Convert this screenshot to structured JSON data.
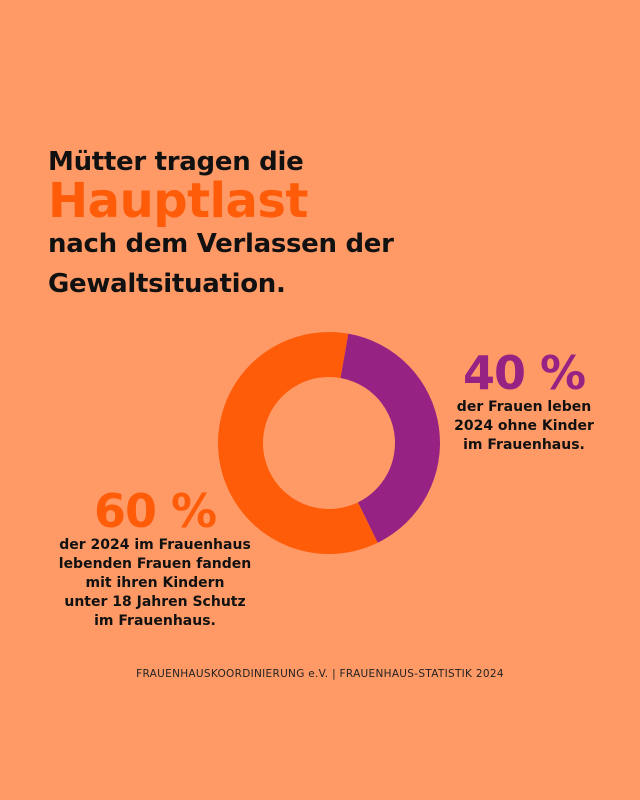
{
  "headline": {
    "line1": "Mütter tragen die",
    "accent": "Hauptlast",
    "line3": "nach dem Verlassen der",
    "line4": "Gewaltsituation."
  },
  "colors": {
    "background": "#FF9A66",
    "accent": "#FF5C0A",
    "purple": "#962283",
    "donut_hole": "#FF9A66"
  },
  "chart_data": {
    "type": "pie",
    "variant": "donut",
    "slices": [
      {
        "label": "40 %",
        "value": 40,
        "color": "#962283"
      },
      {
        "label": "60 %",
        "value": 60,
        "color": "#FF5C0A"
      }
    ]
  },
  "stats": {
    "forty": {
      "pct": "40 %",
      "desc": "der Frauen leben\n2024 ohne Kinder\nim Frauenhaus."
    },
    "sixty": {
      "pct": "60 %",
      "desc": "der 2024 im Frauenhaus\nlebenden Frauen fanden\nmit ihren Kindern\nunter 18 Jahren Schutz\nim Frauenhaus."
    }
  },
  "footer": "FRAUENHAUSKOORDINIERUNG e.V. | FRAUENHAUS-STATISTIK 2024"
}
